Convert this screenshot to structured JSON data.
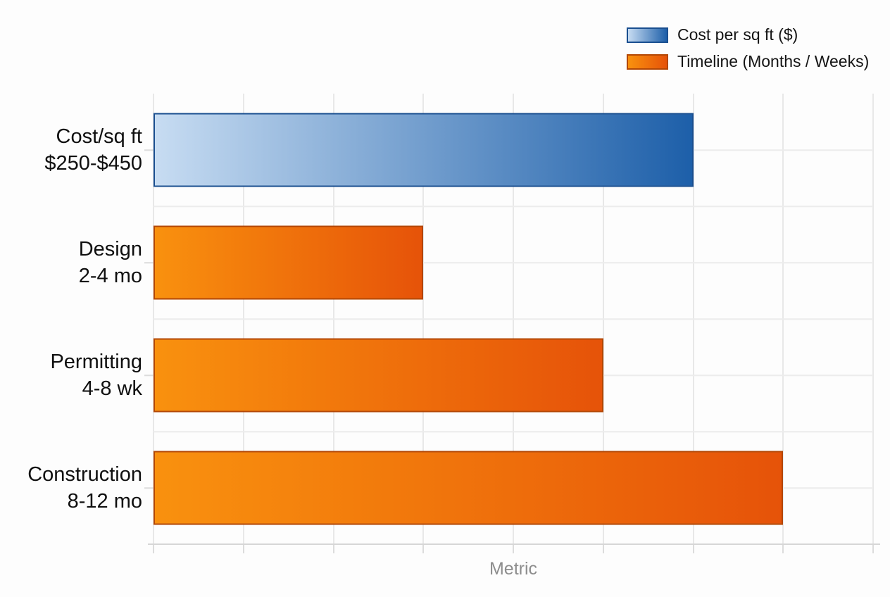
{
  "chart_data": {
    "type": "bar",
    "orientation": "horizontal",
    "title": "",
    "xlabel": "Metric",
    "ylabel": "",
    "xlim": [
      0,
      8
    ],
    "x_gridlines": 9,
    "x_tick_labels_visible": false,
    "grid": "on",
    "legend_position": "top-right",
    "legend": [
      {
        "label": "Cost per sq ft ($)",
        "color_start": "#c7dcf2",
        "color_end": "#1d5fa9",
        "border": "#1a4f90"
      },
      {
        "label": "Timeline (Months / Weeks)",
        "color_start": "#f9910e",
        "color_end": "#e65309",
        "border": "#b34704"
      }
    ],
    "categories": [
      "Cost/sq ft $250-$450",
      "Design 2-4 mo",
      "Permitting 4-8 wk",
      "Construction 8-12 mo"
    ],
    "bars": [
      {
        "category_line1": "Cost/sq ft",
        "category_line2": "$250-$450",
        "value": 6,
        "series": 0
      },
      {
        "category_line1": "Design",
        "category_line2": "2-4 mo",
        "value": 3,
        "series": 1
      },
      {
        "category_line1": "Permitting",
        "category_line2": "4-8 wk",
        "value": 5,
        "series": 1
      },
      {
        "category_line1": "Construction",
        "category_line2": "8-12 mo",
        "value": 7,
        "series": 1
      }
    ]
  },
  "colors": {
    "background": "#fdfdfd",
    "grid": "#e8e8e8",
    "grid_horizontal": "#ececec",
    "axis": "#d6d6d6",
    "tick": "#dcdcdc",
    "label_text": "#0f0f0f",
    "legend_text": "#141414",
    "xlabel_text": "#8d8d8d"
  }
}
